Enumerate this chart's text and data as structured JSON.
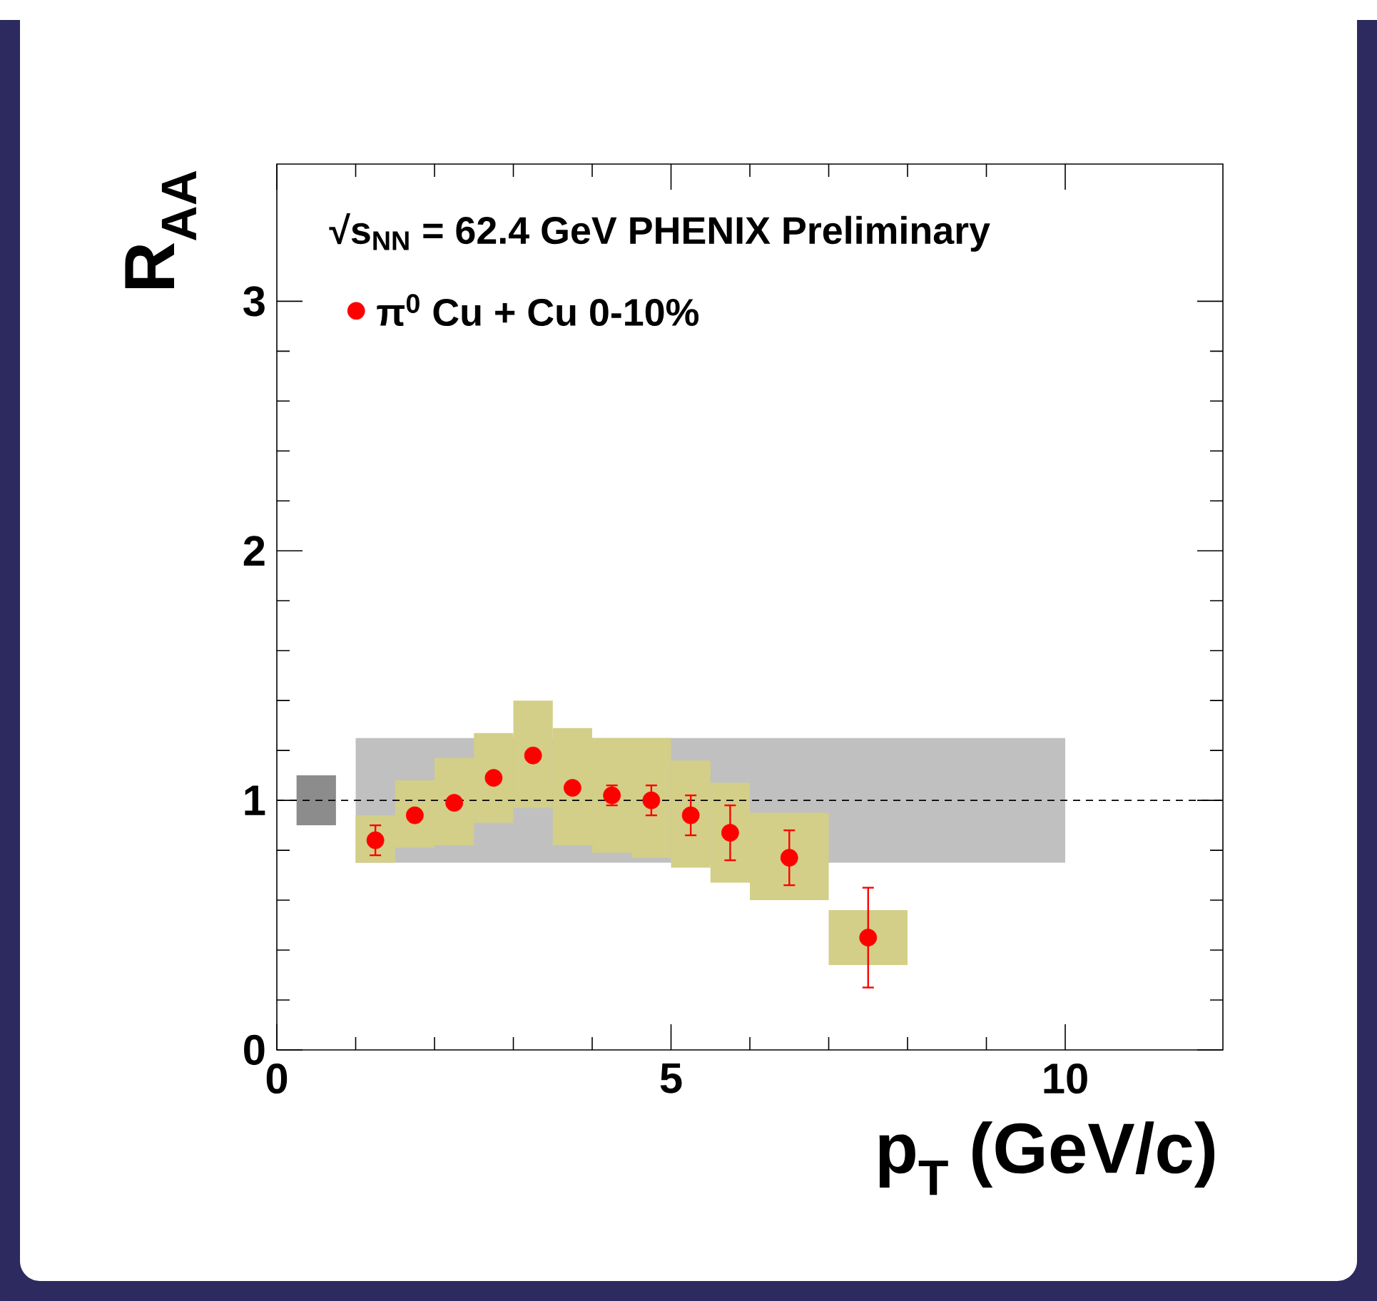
{
  "chart_data": {
    "type": "scatter",
    "xlabel": "p$_{T}$ (GeV/c)",
    "ylabel": "R$_{AA}$",
    "annotations": [
      "√s$_{NN}$ = 62.4 GeV PHENIX Preliminary"
    ],
    "xlim": [
      0,
      12
    ],
    "ylim": [
      0,
      3.55
    ],
    "xticks": [
      0,
      5,
      10
    ],
    "yticks": [
      0,
      1,
      2,
      3
    ],
    "legend": "top left",
    "marker": "circle",
    "ref_lines": [
      {
        "axis": "y",
        "value": 1,
        "color": "#000000",
        "line_style": "dashed"
      }
    ],
    "series": [
      {
        "type": "line",
        "color": "#c0c0c0",
        "x": [
          1,
          10
        ],
        "values": [
          null,
          null
        ],
        "lower": [
          0.75,
          0.75
        ],
        "upper": [
          1.25,
          1.25
        ]
      },
      {
        "type": "line",
        "color": "#8c8c8c",
        "x": [
          0.25,
          0.75
        ],
        "values": [
          null,
          null
        ],
        "lower": [
          0.9,
          0.9
        ],
        "upper": [
          1.1,
          1.1
        ]
      },
      {
        "type": "bar",
        "color": "#d3cf88",
        "x": [
          1.25,
          1.75,
          2.25,
          2.75,
          3.25,
          3.75,
          4.25,
          4.75,
          5.25,
          5.75,
          6.5,
          7.5
        ],
        "base": [
          0.75,
          0.81,
          0.82,
          0.91,
          0.97,
          0.82,
          0.79,
          0.77,
          0.73,
          0.67,
          0.6,
          0.34
        ],
        "values": [
          0.19,
          0.27,
          0.35,
          0.36,
          0.43,
          0.47,
          0.46,
          0.48,
          0.43,
          0.4,
          0.35,
          0.22
        ]
      },
      {
        "name": "π$^{0}$ Cu + Cu 0-10%",
        "color": "#ff0000",
        "x": [
          1.25,
          1.75,
          2.25,
          2.75,
          3.25,
          3.75,
          4.25,
          4.75,
          5.25,
          5.75,
          6.5,
          7.5
        ],
        "values": [
          0.84,
          0.94,
          0.99,
          1.09,
          1.18,
          1.05,
          1.02,
          1.0,
          0.94,
          0.87,
          0.77,
          0.45
        ],
        "errors": [
          0.06,
          null,
          null,
          null,
          null,
          null,
          0.04,
          0.06,
          0.08,
          0.11,
          0.11,
          0.2
        ]
      }
    ]
  }
}
